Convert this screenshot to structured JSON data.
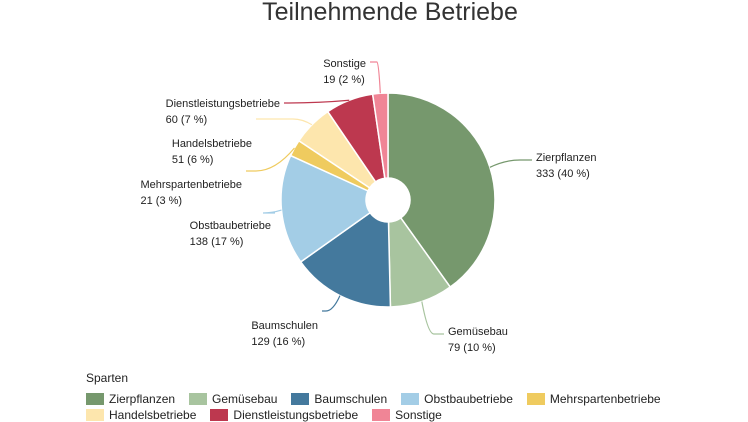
{
  "chart_data": {
    "type": "pie",
    "title": "Teilnehmende Betriebe",
    "legend_title": "Sparten",
    "legend_position": "bottom-left",
    "donut": true,
    "slices": [
      {
        "name": "Zierpflanzen",
        "value": 333,
        "percent": "40 %",
        "color": "#76986d"
      },
      {
        "name": "Gemüsebau",
        "value": 79,
        "percent": "10 %",
        "color": "#a8c49f"
      },
      {
        "name": "Baumschulen",
        "value": 129,
        "percent": "16 %",
        "color": "#44799d"
      },
      {
        "name": "Obstbaubetriebe",
        "value": 138,
        "percent": "17 %",
        "color": "#a3cde6"
      },
      {
        "name": "Mehrspartenbetriebe",
        "value": 21,
        "percent": "3 %",
        "color": "#efcb5f"
      },
      {
        "name": "Handelsbetriebe",
        "value": 51,
        "percent": "6 %",
        "color": "#fde6ad"
      },
      {
        "name": "Dienstleistungsbetriebe",
        "value": 60,
        "percent": "7 %",
        "color": "#bd384f"
      },
      {
        "name": "Sonstige",
        "value": 19,
        "percent": "2 %",
        "color": "#f08596"
      }
    ]
  }
}
